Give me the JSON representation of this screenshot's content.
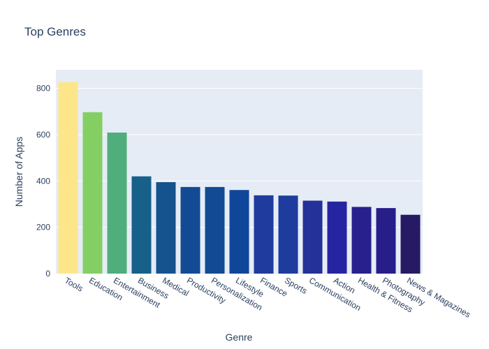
{
  "chart_data": {
    "type": "bar",
    "title": "Top Genres",
    "xlabel": "Genre",
    "ylabel": "Number of Apps",
    "categories": [
      "Tools",
      "Education",
      "Entertainment",
      "Business",
      "Medical",
      "Productivity",
      "Personalization",
      "Lifestyle",
      "Finance",
      "Sports",
      "Communication",
      "Action",
      "Health & Fitness",
      "Photography",
      "News & Magazines"
    ],
    "values": [
      827,
      697,
      609,
      420,
      395,
      374,
      374,
      361,
      338,
      337,
      315,
      311,
      288,
      283,
      254
    ],
    "bar_colors": [
      "#fde68a",
      "#84cf63",
      "#4fae7c",
      "#176089",
      "#15538f",
      "#124b94",
      "#124b94",
      "#10469a",
      "#1f3b9d",
      "#1e3b9e",
      "#233198",
      "#2525a1",
      "#27208d",
      "#271e8a",
      "#251a63"
    ],
    "ylim": [
      0,
      880
    ],
    "yticks": [
      0,
      200,
      400,
      600,
      800
    ],
    "grid": true,
    "plot_bg": "#e5ecf6"
  }
}
